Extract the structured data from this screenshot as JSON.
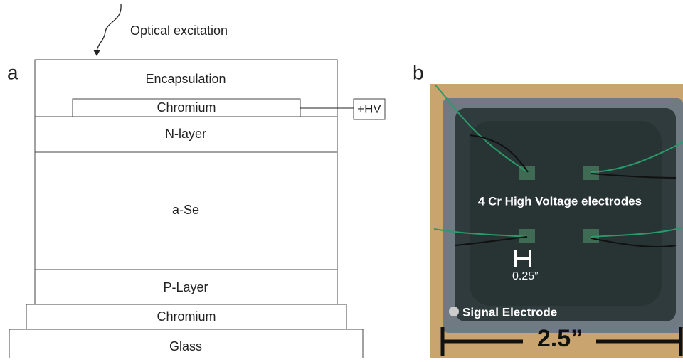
{
  "panel_a": {
    "label": "a",
    "excitation": "Optical excitation",
    "layers": [
      "Encapsulation",
      "Chromium",
      "N-layer",
      "a-Se",
      "P-Layer",
      "Chromium",
      "Glass"
    ],
    "hv": "+HV"
  },
  "panel_b": {
    "label": "b",
    "electrodes": "4 Cr High Voltage electrodes",
    "small_scale": "0.25”",
    "signal": "Signal Electrode",
    "large_scale": "2.5”"
  }
}
